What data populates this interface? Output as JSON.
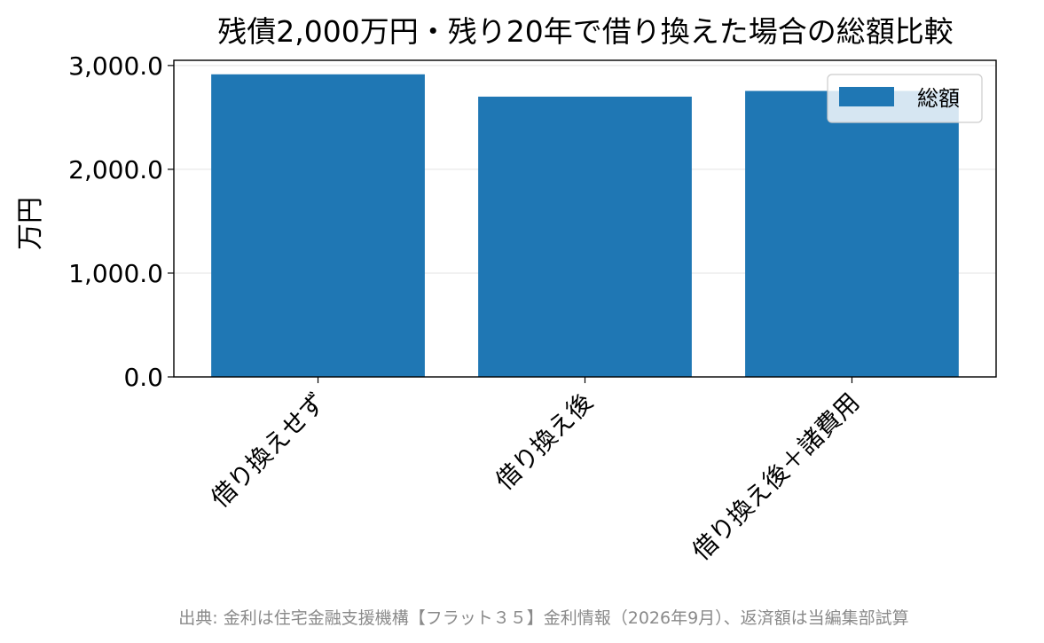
{
  "chart_data": {
    "type": "bar",
    "title": "残債2,000万円・残り20年で借り換えた場合の総額比較",
    "categories": [
      "借り換えせず",
      "借り換え後",
      "借り換え後＋諸費用"
    ],
    "series": [
      {
        "name": "総額",
        "values": [
          2915,
          2700,
          2755
        ],
        "color": "#1f77b4"
      }
    ],
    "ylabel": "万円",
    "xlabel": "",
    "ylim": [
      0,
      3050
    ],
    "yticks": [
      0,
      1000,
      2000,
      3000
    ],
    "ytick_labels": [
      "0.0",
      "1,000.0",
      "2,000.0",
      "3,000.0"
    ],
    "grid": "horizontal",
    "legend_position": "top-right",
    "source": "出典: 金利は住宅金融支援機構【フラット３５】金利情報（2026年9月）、返済額は当編集部試算"
  }
}
